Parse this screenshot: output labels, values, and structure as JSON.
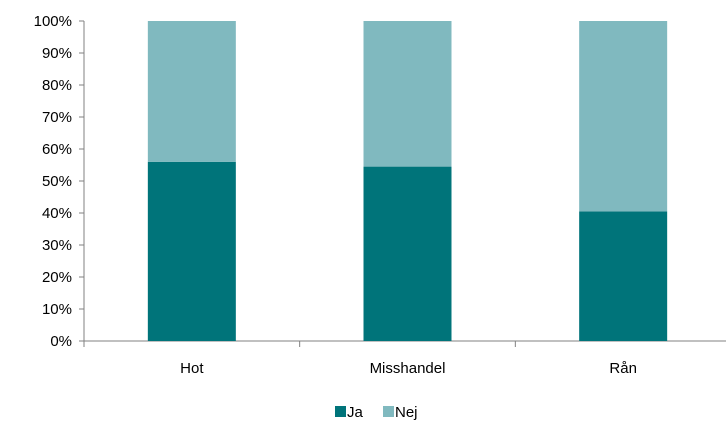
{
  "chart_data": {
    "type": "bar",
    "stacked": true,
    "percent_scale": true,
    "categories": [
      "Hot",
      "Misshandel",
      "Rån"
    ],
    "series": [
      {
        "name": "Ja",
        "values": [
          56,
          54.5,
          40.5
        ],
        "color": "#00747a"
      },
      {
        "name": "Nej",
        "values": [
          44,
          45.5,
          59.5
        ],
        "color": "#80b9bf"
      }
    ],
    "ylim": [
      0,
      100
    ],
    "yticks": [
      "0%",
      "10%",
      "20%",
      "30%",
      "40%",
      "50%",
      "60%",
      "70%",
      "80%",
      "90%",
      "100%"
    ],
    "grid": false,
    "legend": "bottom-center",
    "axis_color": "#808080"
  }
}
